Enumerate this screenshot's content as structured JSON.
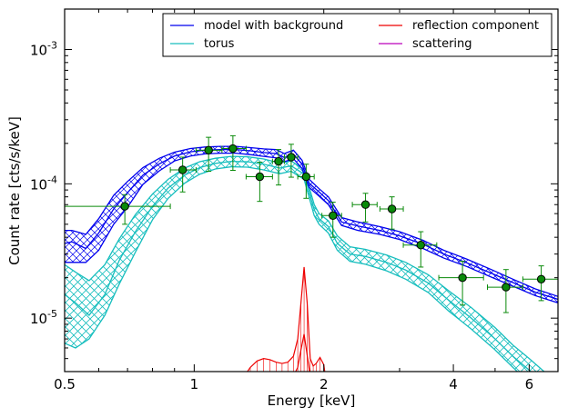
{
  "chart_data": {
    "type": "line",
    "title": "",
    "xlabel": "Energy [keV]",
    "ylabel": "Count rate [cts/s/keV]",
    "xscale": "log",
    "yscale": "log",
    "xlim": [
      0.5,
      7.0
    ],
    "ylim": [
      4e-06,
      0.002
    ],
    "x_ticks": [
      {
        "value": 0.5,
        "label": "0.5"
      },
      {
        "value": 1,
        "label": "1"
      },
      {
        "value": 2,
        "label": "2"
      },
      {
        "value": 4,
        "label": "4"
      },
      {
        "value": 6,
        "label": "6"
      }
    ],
    "y_ticks": [
      {
        "value": 1e-05,
        "base": "10",
        "exp": "-5"
      },
      {
        "value": 0.0001,
        "base": "10",
        "exp": "-4"
      },
      {
        "value": 0.001,
        "base": "10",
        "exp": "-3"
      }
    ],
    "legend": {
      "position": "top-right",
      "columns": 2,
      "entries": [
        {
          "label": "model with background",
          "color": "#0000ee"
        },
        {
          "label": "torus",
          "color": "#17bebe"
        },
        {
          "label": "reflection component",
          "color": "#ee0000"
        },
        {
          "label": "scattering",
          "color": "#bb00bb"
        }
      ]
    },
    "series": [
      {
        "name": "model with background",
        "kind": "band",
        "color": "#0000ee",
        "x": [
          0.5,
          0.52,
          0.56,
          0.6,
          0.65,
          0.7,
          0.76,
          0.83,
          0.9,
          0.98,
          1.06,
          1.15,
          1.25,
          1.35,
          1.45,
          1.55,
          1.62,
          1.7,
          1.78,
          1.85,
          1.95,
          2.05,
          2.2,
          2.4,
          2.7,
          3.0,
          3.4,
          3.8,
          4.3,
          4.9,
          5.5,
          6.2,
          7.0
        ],
        "upper": [
          4.5e-05,
          4.5e-05,
          4.2e-05,
          5.5e-05,
          8.2e-05,
          0.000104,
          0.000132,
          0.000155,
          0.000172,
          0.000183,
          0.000188,
          0.00019,
          0.00019,
          0.000186,
          0.000182,
          0.00018,
          0.000168,
          0.000178,
          0.00015,
          0.000108,
          9.2e-05,
          8e-05,
          5.6e-05,
          5.2e-05,
          4.8e-05,
          4.4e-05,
          3.8e-05,
          3.2e-05,
          2.75e-05,
          2.3e-05,
          1.95e-05,
          1.65e-05,
          1.45e-05
        ],
        "middle": [
          3.6e-05,
          3.7e-05,
          3.3e-05,
          4.3e-05,
          6.5e-05,
          8.6e-05,
          0.000116,
          0.000141,
          0.000161,
          0.000173,
          0.000178,
          0.00018,
          0.00018,
          0.000176,
          0.000171,
          0.000168,
          0.000157,
          0.000166,
          0.00014,
          0.000101,
          8.7e-05,
          7.5e-05,
          5.2e-05,
          4.85e-05,
          4.5e-05,
          4.1e-05,
          3.55e-05,
          3e-05,
          2.58e-05,
          2.16e-05,
          1.84e-05,
          1.56e-05,
          1.38e-05
        ],
        "lower": [
          2.6e-05,
          2.6e-05,
          2.6e-05,
          3.2e-05,
          5e-05,
          6.7e-05,
          9.9e-05,
          0.000125,
          0.000148,
          0.000161,
          0.000167,
          0.000169,
          0.000169,
          0.000165,
          0.00016,
          0.000156,
          0.000146,
          0.000154,
          0.00013,
          9.4e-05,
          8.1e-05,
          7e-05,
          4.9e-05,
          4.5e-05,
          4.2e-05,
          3.85e-05,
          3.3e-05,
          2.8e-05,
          2.42e-05,
          2.02e-05,
          1.73e-05,
          1.47e-05,
          1.3e-05
        ]
      },
      {
        "name": "torus",
        "kind": "band",
        "color": "#17bebe",
        "x": [
          0.5,
          0.53,
          0.57,
          0.62,
          0.67,
          0.73,
          0.8,
          0.87,
          0.95,
          1.03,
          1.12,
          1.22,
          1.33,
          1.45,
          1.58,
          1.68,
          1.8,
          1.9,
          1.95,
          2.05,
          2.15,
          2.3,
          2.5,
          2.8,
          3.1,
          3.5,
          3.9,
          4.4,
          5.0,
          5.5,
          6.0,
          6.5,
          7.0
        ],
        "upper": [
          2.5e-05,
          2.2e-05,
          1.9e-05,
          2.5e-05,
          3.9e-05,
          5.9e-05,
          8.4e-05,
          0.000108,
          0.000131,
          0.000146,
          0.000155,
          0.00016,
          0.000159,
          0.000153,
          0.000143,
          0.000148,
          0.000128,
          7e-05,
          6e-05,
          5.3e-05,
          4.1e-05,
          3.4e-05,
          3.25e-05,
          2.95e-05,
          2.6e-05,
          2.1e-05,
          1.6e-05,
          1.2e-05,
          8.5e-06,
          6.3e-06,
          5e-06,
          4e-06,
          3.2e-06
        ],
        "middle": [
          1.5e-05,
          1.3e-05,
          1.05e-05,
          1.5e-05,
          2.7e-05,
          4.4e-05,
          6.8e-05,
          9.3e-05,
          0.000116,
          0.000132,
          0.000142,
          0.000147,
          0.000146,
          0.00014,
          0.000131,
          0.000136,
          0.000118,
          6.4e-05,
          5.5e-05,
          4.8e-05,
          3.6e-05,
          3e-05,
          2.88e-05,
          2.6e-05,
          2.28e-05,
          1.82e-05,
          1.36e-05,
          1e-05,
          7e-06,
          5.2e-06,
          4.1e-06,
          3.3e-06,
          2.6e-06
        ],
        "lower": [
          6.5e-06,
          6e-06,
          7e-06,
          1.05e-05,
          1.8e-05,
          3.1e-05,
          5.4e-05,
          7.8e-05,
          0.000101,
          0.000118,
          0.000129,
          0.000134,
          0.000133,
          0.000127,
          0.000119,
          0.000124,
          0.000108,
          5.8e-05,
          5e-05,
          4.3e-05,
          3.2e-05,
          2.65e-05,
          2.52e-05,
          2.25e-05,
          1.95e-05,
          1.55e-05,
          1.13e-05,
          8.3e-06,
          5.8e-06,
          4.3e-06,
          3.3e-06,
          2.6e-06,
          2e-06
        ]
      },
      {
        "name": "reflection component",
        "kind": "lines",
        "color": "#ee0000",
        "lines": [
          {
            "x": [
              1.3,
              1.35,
              1.4,
              1.45,
              1.5,
              1.55,
              1.6,
              1.65,
              1.7,
              1.74,
              1.77,
              1.8,
              1.83,
              1.86,
              1.89,
              1.92,
              1.96,
              2.0,
              2.03
            ],
            "y": [
              3.6e-06,
              4.3e-06,
              4.8e-06,
              5e-06,
              4.9e-06,
              4.7e-06,
              4.6e-06,
              4.7e-06,
              5.2e-06,
              7e-06,
              1.3e-05,
              2.4e-05,
              1.3e-05,
              5e-06,
              4.4e-06,
              4.6e-06,
              5.1e-06,
              4.5e-06,
              3.2e-06
            ]
          },
          {
            "x": [
              1.6,
              1.65,
              1.7,
              1.74,
              1.77,
              1.8,
              1.83,
              1.86,
              1.89,
              1.93,
              1.97
            ],
            "y": [
              3.3e-06,
              3.5e-06,
              3.7e-06,
              4.3e-06,
              5.8e-06,
              7.6e-06,
              5.3e-06,
              3.7e-06,
              3.4e-06,
              3.6e-06,
              3.2e-06
            ]
          }
        ]
      },
      {
        "name": "data",
        "kind": "points",
        "color": "#0a8a0a",
        "points": [
          {
            "x": 0.69,
            "y": 6.8e-05,
            "xlo": 0.5,
            "xhi": 0.88,
            "ylo": 5e-05,
            "yhi": 8.3e-05
          },
          {
            "x": 0.94,
            "y": 0.000127,
            "xlo": 0.88,
            "xhi": 1.01,
            "ylo": 8.7e-05,
            "yhi": 0.000158
          },
          {
            "x": 1.08,
            "y": 0.000178,
            "xlo": 1.01,
            "xhi": 1.16,
            "ylo": 0.000124,
            "yhi": 0.000222
          },
          {
            "x": 1.23,
            "y": 0.000183,
            "xlo": 1.16,
            "xhi": 1.32,
            "ylo": 0.000126,
            "yhi": 0.000228
          },
          {
            "x": 1.42,
            "y": 0.000113,
            "xlo": 1.32,
            "xhi": 1.52,
            "ylo": 7.4e-05,
            "yhi": 0.000145
          },
          {
            "x": 1.57,
            "y": 0.000147,
            "xlo": 1.52,
            "xhi": 1.62,
            "ylo": 9.8e-05,
            "yhi": 0.00018
          },
          {
            "x": 1.68,
            "y": 0.000158,
            "xlo": 1.62,
            "xhi": 1.74,
            "ylo": 0.000112,
            "yhi": 0.000197
          },
          {
            "x": 1.82,
            "y": 0.000113,
            "xlo": 1.74,
            "xhi": 1.9,
            "ylo": 7.8e-05,
            "yhi": 0.00014
          },
          {
            "x": 2.1,
            "y": 5.8e-05,
            "xlo": 1.98,
            "xhi": 2.2,
            "ylo": 4e-05,
            "yhi": 7.3e-05
          },
          {
            "x": 2.5,
            "y": 7e-05,
            "xlo": 2.33,
            "xhi": 2.66,
            "ylo": 5.2e-05,
            "yhi": 8.5e-05
          },
          {
            "x": 2.88,
            "y": 6.5e-05,
            "xlo": 2.7,
            "xhi": 3.06,
            "ylo": 4.6e-05,
            "yhi": 8e-05
          },
          {
            "x": 3.36,
            "y": 3.5e-05,
            "xlo": 3.06,
            "xhi": 3.66,
            "ylo": 2.4e-05,
            "yhi": 4.4e-05
          },
          {
            "x": 4.2,
            "y": 2e-05,
            "xlo": 3.7,
            "xhi": 4.7,
            "ylo": 1.25e-05,
            "yhi": 2.65e-05
          },
          {
            "x": 5.3,
            "y": 1.7e-05,
            "xlo": 4.8,
            "xhi": 5.8,
            "ylo": 1.1e-05,
            "yhi": 2.3e-05
          },
          {
            "x": 6.4,
            "y": 1.95e-05,
            "xlo": 5.8,
            "xhi": 7.0,
            "ylo": 1.35e-05,
            "yhi": 2.45e-05
          }
        ]
      }
    ]
  }
}
